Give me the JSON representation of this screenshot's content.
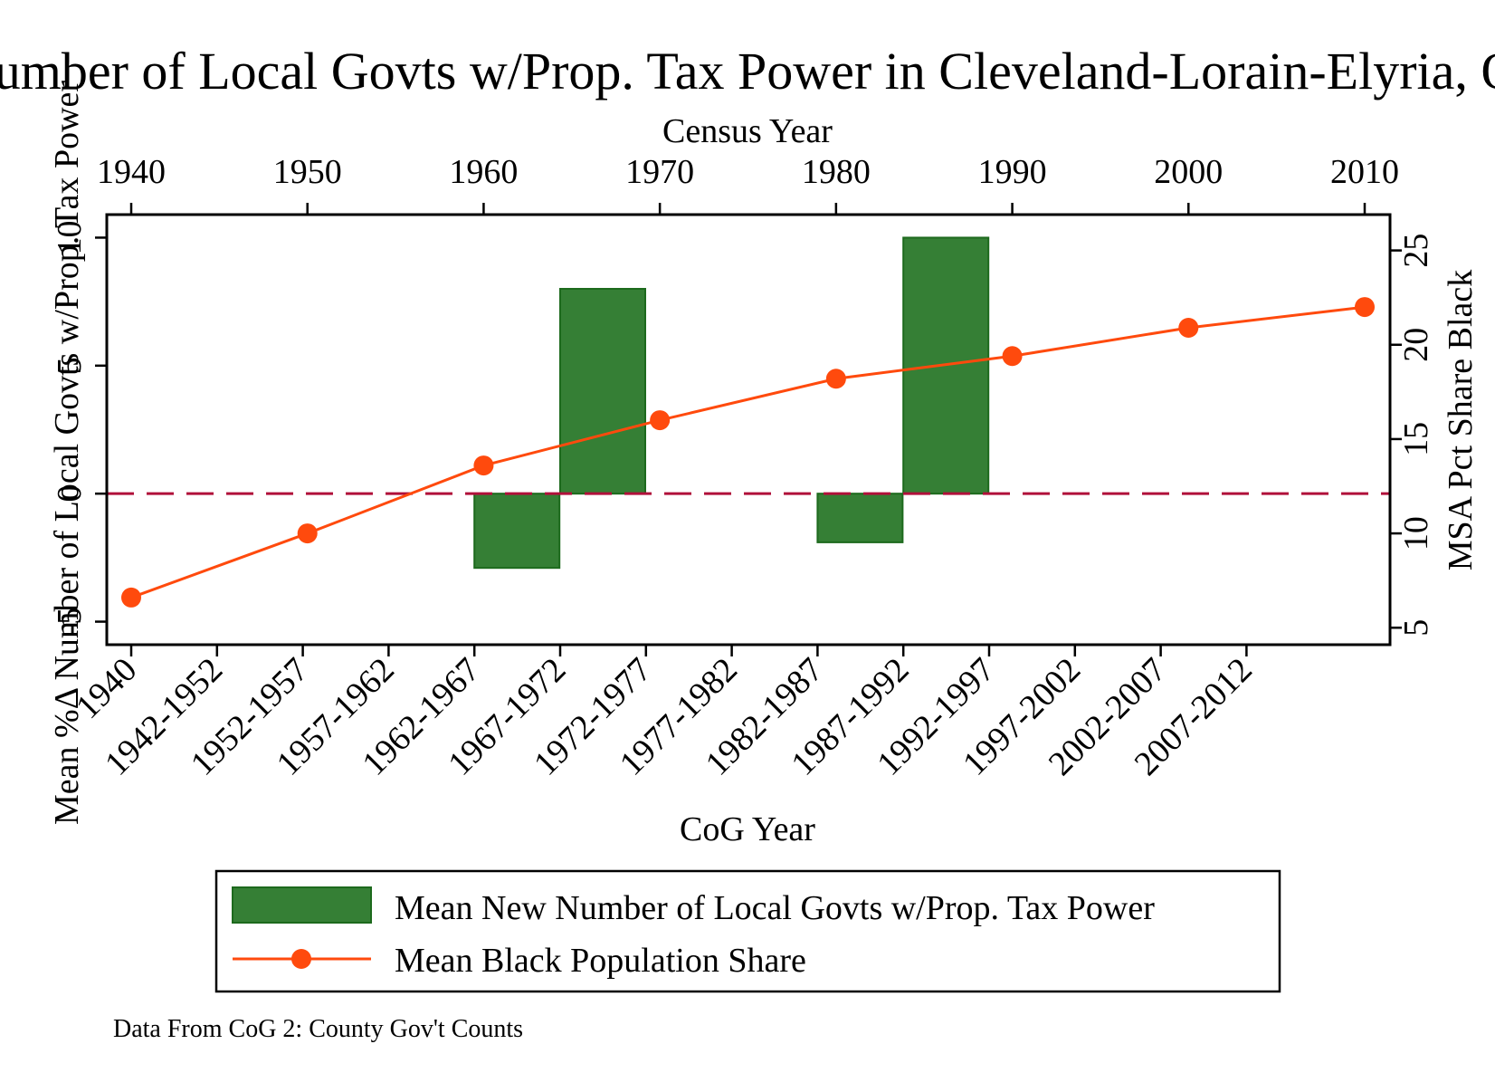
{
  "chart_data": {
    "type": "bar",
    "title": "Number of Local Govts w/Prop. Tax Power in Cleveland-Lorain-Elyria, OH",
    "top_axis": {
      "label": "Census Year",
      "ticks": [
        "1940",
        "1950",
        "1960",
        "1970",
        "1980",
        "1990",
        "2000",
        "2010"
      ],
      "range": [
        1940,
        2010
      ]
    },
    "bottom_axis": {
      "label": "CoG Year",
      "categories": [
        "1940",
        "1942-1952",
        "1952-1957",
        "1957-1962",
        "1962-1967",
        "1967-1972",
        "1972-1977",
        "1977-1982",
        "1982-1987",
        "1987-1992",
        "1992-1997",
        "1997-2002",
        "2002-2007",
        "2007-2012"
      ]
    },
    "left_axis": {
      "label": "Mean %Δ Number of Local Govts w/Prop. Tax Power",
      "ticks": [
        "-5",
        "0",
        "5",
        "10"
      ],
      "range": [
        -5.9,
        10.9
      ]
    },
    "right_axis": {
      "label": "MSA Pct Share Black",
      "ticks": [
        "5",
        "10",
        "15",
        "20",
        "25"
      ],
      "range": [
        4.1,
        26.9
      ]
    },
    "reference_line": {
      "value": 0,
      "axis": "left",
      "style": "dashed",
      "color": "#b0103a"
    },
    "series": [
      {
        "name": "Mean New Number of Local Govts w/Prop. Tax Power",
        "type": "bar",
        "axis": "left",
        "color": "#357f35",
        "edge_color": "#1d6a1d",
        "bars": [
          {
            "category": "1962-1967",
            "value": -2.9
          },
          {
            "category": "1967-1972",
            "value": 8.0
          },
          {
            "category": "1982-1987",
            "value": -1.9
          },
          {
            "category": "1987-1992",
            "value": 10.0
          }
        ]
      },
      {
        "name": "Mean Black Population Share",
        "type": "line",
        "axis": "right",
        "color": "#ff4a0d",
        "x": [
          1940,
          1950,
          1960,
          1970,
          1980,
          1990,
          2000,
          2010
        ],
        "y": [
          6.6,
          10.0,
          13.6,
          16.0,
          18.2,
          19.4,
          20.9,
          22.0
        ]
      }
    ],
    "legend": {
      "entries": [
        "Mean New Number of Local Govts w/Prop. Tax Power",
        "Mean Black Population Share"
      ],
      "position": "bottom"
    },
    "note": "Data From CoG 2: County Gov't Counts"
  }
}
